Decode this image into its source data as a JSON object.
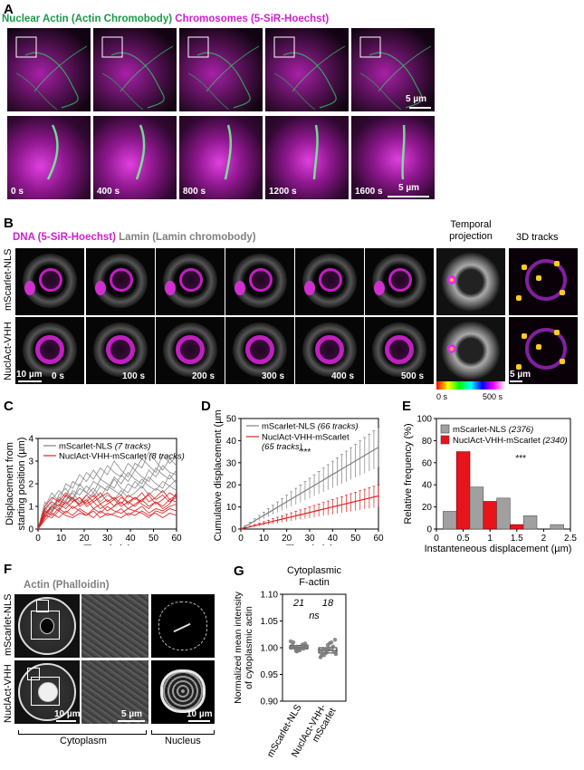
{
  "panelA": {
    "label": "A",
    "title_green": "Nuclear Actin (Actin Chromobody)",
    "title_magenta": "Chromosomes (5-SiR-Hoechst)",
    "times": [
      "0 s",
      "400 s",
      "800 s",
      "1200 s",
      "1600 s"
    ],
    "scale_top": "5 µm",
    "scale_bottom": "5 µm"
  },
  "panelB": {
    "label": "B",
    "title_magenta": "DNA (5-SiR-Hoechst)",
    "title_gray": "Lamin (Lamin chromobody)",
    "row1": "mScarlet-NLS",
    "row2": "NuclAct-VHH",
    "times": [
      "0 s",
      "100 s",
      "200 s",
      "300 s",
      "400 s",
      "500 s"
    ],
    "col_temporal": "Temporal\nprojection",
    "col_temporal_1": "Temporal",
    "col_temporal_2": "projection",
    "col_3d": "3D tracks",
    "scale_left": "10 µm",
    "scale_right": "5 µm",
    "colorbar_start": "0 s",
    "colorbar_end": "500 s"
  },
  "panelC": {
    "label": "C",
    "chart_data": {
      "type": "line",
      "xlabel": "Time (min)",
      "ylabel_1": "Displacement from",
      "ylabel_2": "starting position (µm)",
      "xlim": [
        0,
        60
      ],
      "ylim": [
        0,
        4
      ],
      "xticks": [
        "0",
        "10",
        "20",
        "30",
        "40",
        "50",
        "60"
      ],
      "yticks": [
        "0",
        "1",
        "2",
        "3",
        "4"
      ],
      "legend": [
        {
          "name": "mScarlet-NLS",
          "detail": "(7 tracks)",
          "color": "#808080"
        },
        {
          "name": "NuclAct-VHH-mScarlet",
          "detail": "(8 tracks)",
          "color": "#e02020"
        }
      ],
      "x": [
        0,
        3,
        6,
        9,
        12,
        15,
        18,
        21,
        24,
        27,
        30,
        33,
        36,
        39,
        42,
        45,
        48,
        51,
        54,
        57,
        60
      ],
      "series_gray": [
        [
          0,
          1.0,
          1.6,
          1.2,
          2.0,
          1.8,
          2.4,
          2.1,
          2.6,
          2.2,
          2.8,
          2.5,
          2.3,
          2.9,
          2.6,
          3.1,
          2.8,
          2.5,
          3.3,
          2.9,
          3.2
        ],
        [
          0,
          0.8,
          1.3,
          1.7,
          1.4,
          2.1,
          1.9,
          2.5,
          2.2,
          2.7,
          2.4,
          3.0,
          2.6,
          2.3,
          2.9,
          2.7,
          3.4,
          3.0,
          2.6,
          3.1,
          2.8
        ],
        [
          0,
          0.6,
          1.1,
          0.9,
          1.5,
          1.3,
          1.8,
          1.6,
          2.1,
          1.9,
          1.7,
          2.3,
          2.0,
          2.5,
          2.2,
          2.0,
          2.6,
          2.3,
          2.8,
          2.5,
          2.4
        ],
        [
          0,
          0.9,
          0.7,
          1.4,
          1.2,
          1.7,
          1.5,
          1.9,
          1.6,
          2.2,
          2.0,
          1.8,
          2.4,
          2.1,
          2.6,
          2.3,
          2.1,
          2.7,
          2.4,
          2.2,
          2.6
        ],
        [
          0,
          0.5,
          1.0,
          0.8,
          1.3,
          1.6,
          1.2,
          1.5,
          1.8,
          1.4,
          1.9,
          1.7,
          1.5,
          2.0,
          1.8,
          2.2,
          1.9,
          1.7,
          2.1,
          1.9,
          2.2
        ],
        [
          0,
          0.7,
          0.9,
          1.2,
          1.0,
          1.4,
          1.1,
          1.3,
          1.6,
          1.2,
          1.5,
          1.3,
          1.7,
          1.4,
          1.6,
          1.9,
          1.5,
          1.8,
          1.6,
          1.9,
          1.7
        ],
        [
          0,
          1.2,
          0.8,
          1.5,
          1.8,
          1.3,
          2.0,
          1.6,
          1.4,
          1.9,
          1.7,
          2.2,
          1.8,
          1.6,
          2.1,
          1.8,
          2.3,
          2.0,
          1.8,
          2.4,
          2.0
        ]
      ],
      "series_red": [
        [
          0,
          0.9,
          1.2,
          1.0,
          1.5,
          1.2,
          1.4,
          1.1,
          1.3,
          1.6,
          1.2,
          1.4,
          1.1,
          1.5,
          1.3,
          1.6,
          1.2,
          1.4,
          1.7,
          1.3,
          1.5
        ],
        [
          0,
          0.7,
          1.0,
          1.3,
          1.1,
          1.4,
          1.0,
          1.2,
          1.5,
          1.1,
          1.3,
          1.0,
          1.4,
          1.2,
          1.0,
          1.3,
          1.5,
          1.1,
          1.3,
          1.6,
          1.4
        ],
        [
          0,
          0.5,
          0.8,
          1.1,
          0.9,
          1.2,
          1.4,
          1.0,
          1.2,
          0.9,
          1.1,
          1.3,
          1.0,
          1.2,
          1.4,
          1.1,
          0.9,
          1.2,
          1.0,
          1.3,
          1.2
        ],
        [
          0,
          0.6,
          1.0,
          0.8,
          1.2,
          0.9,
          1.1,
          1.3,
          0.9,
          1.1,
          0.8,
          1.0,
          1.2,
          0.9,
          1.1,
          1.3,
          1.0,
          1.2,
          0.9,
          1.1,
          1.6
        ],
        [
          0,
          0.8,
          0.6,
          0.9,
          0.7,
          1.0,
          0.8,
          0.6,
          0.9,
          0.7,
          1.0,
          0.8,
          0.7,
          0.9,
          0.8,
          1.0,
          0.7,
          0.9,
          0.8,
          1.0,
          1.1
        ],
        [
          0,
          0.4,
          0.7,
          0.5,
          0.8,
          0.6,
          0.9,
          0.7,
          0.5,
          0.8,
          0.6,
          0.7,
          0.9,
          0.6,
          0.8,
          0.7,
          0.5,
          0.8,
          0.7,
          0.9,
          0.8
        ],
        [
          0,
          1.0,
          1.4,
          1.2,
          1.6,
          1.3,
          1.1,
          1.5,
          1.2,
          1.4,
          1.6,
          1.3,
          1.5,
          1.1,
          1.4,
          1.2,
          1.6,
          1.3,
          1.5,
          1.2,
          1.4
        ],
        [
          0,
          0.6,
          0.5,
          0.8,
          0.6,
          0.5,
          0.7,
          0.6,
          0.8,
          0.5,
          0.7,
          0.6,
          0.5,
          0.7,
          0.6,
          0.8,
          0.6,
          0.7,
          0.5,
          0.7,
          0.6
        ]
      ]
    }
  },
  "panelD": {
    "label": "D",
    "chart_data": {
      "type": "line",
      "xlabel": "Time (min)",
      "ylabel": "Cumulative displacement (µm)",
      "xlim": [
        0,
        60
      ],
      "ylim": [
        0,
        50
      ],
      "xticks": [
        "0",
        "10",
        "20",
        "30",
        "40",
        "50",
        "60"
      ],
      "yticks": [
        "0",
        "10",
        "20",
        "30",
        "40",
        "50"
      ],
      "significance": "***",
      "legend": [
        {
          "name": "mScarlet-NLS",
          "detail": "(66 tracks)",
          "color": "#808080"
        },
        {
          "name": "NuclAct-VHH-mScarlet",
          "detail": "(65 tracks)",
          "color": "#e02020"
        }
      ],
      "gray_mean_end": 37,
      "gray_err_end": 9,
      "red_mean_end": 15,
      "red_err_end": 5
    }
  },
  "panelE": {
    "label": "E",
    "chart_data": {
      "type": "bar",
      "xlabel": "Instanteneous displacement (µm)",
      "ylabel": "Relative frequency (%)",
      "xlim": [
        0,
        2.5
      ],
      "ylim": [
        0,
        100
      ],
      "xticks": [
        "0",
        "0.5",
        "1",
        "1.5",
        "2",
        "2.5"
      ],
      "yticks": [
        "0",
        "20",
        "40",
        "60",
        "80",
        "100"
      ],
      "significance": "***",
      "bin_edges": [
        0.125,
        0.375,
        0.625,
        0.875,
        1.125,
        1.375,
        1.625,
        1.875,
        2.125,
        2.375
      ],
      "gray_values": [
        16,
        0,
        38,
        0,
        28,
        0,
        12,
        0,
        4
      ],
      "red_values": [
        0,
        70,
        0,
        25,
        0,
        4,
        0,
        0,
        0
      ],
      "legend": [
        {
          "name": "mScarlet-NLS",
          "detail": "(2376)",
          "color": "#a0a0a0"
        },
        {
          "name": "NuclAct-VHH-mScarlet",
          "detail": "(2340)",
          "color": "#e8141c"
        }
      ]
    }
  },
  "panelF": {
    "label": "F",
    "title": "Actin (Phalloidin)",
    "row1": "mScarlet-NLS",
    "row2": "NuclAct-VHH",
    "bottom_left": "Cytoplasm",
    "bottom_right": "Nucleus",
    "scale_1": "10 µm",
    "scale_2": "5 µm",
    "scale_3": "10 µm"
  },
  "panelG": {
    "label": "G",
    "chart_data": {
      "type": "scatter",
      "title_1": "Cytoplasmic",
      "title_2": "F-actin",
      "ylabel_1": "Normalized mean intensity",
      "ylabel_2": "of cytoplasmic actin",
      "ylim": [
        0.9,
        1.1
      ],
      "yticks": [
        "0.90",
        "0.95",
        "1.00",
        "1.05",
        "1.10"
      ],
      "categories": [
        "mScarlet-NLS",
        "NuclAct-VHH-\nmScarlet"
      ],
      "cat1": "mScarlet-NLS",
      "cat2_1": "NuclAct-VHH-",
      "cat2_2": "mScarlet",
      "n": [
        "21",
        "18"
      ],
      "stat": "ns",
      "group1": [
        1.0,
        1.002,
        0.998,
        1.005,
        0.996,
        1.008,
        1.001,
        0.999,
        1.003,
        0.994,
        1.006,
        1.0,
        0.997,
        1.004,
        1.01,
        0.995,
        1.002,
        0.999,
        1.001,
        1.012,
        0.993
      ],
      "group2": [
        0.995,
        0.99,
        1.0,
        0.985,
        1.005,
        0.992,
        0.998,
        1.008,
        0.988,
        0.996,
        1.01,
        0.982,
        0.994,
        1.002,
        0.99,
        0.999,
        1.015,
        0.986
      ]
    }
  }
}
